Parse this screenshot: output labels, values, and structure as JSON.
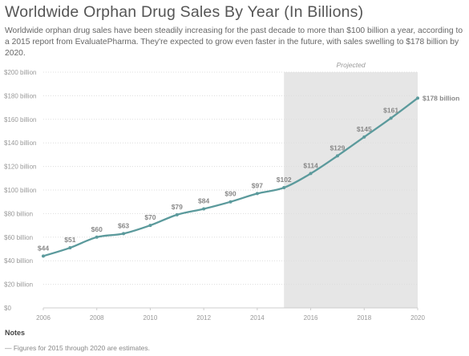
{
  "title": "Worldwide Orphan Drug Sales By Year (In Billions)",
  "subtitle": "Worldwide orphan drug sales have been steadily increasing for the past decade to more than $100 billion a year, according to a 2015 report from EvaluatePharma. They're expected to grow even faster in the future, with sales swelling to $178 billion by 2020.",
  "chart_data": {
    "type": "line",
    "x": [
      2006,
      2007,
      2008,
      2009,
      2010,
      2011,
      2012,
      2013,
      2014,
      2015,
      2016,
      2017,
      2018,
      2019,
      2020
    ],
    "series": [
      {
        "values": [
          44,
          51,
          60,
          63,
          70,
          79,
          84,
          90,
          97,
          102,
          114,
          129,
          145,
          161,
          178
        ],
        "labels": [
          "$44",
          "$51",
          "$60",
          "$63",
          "$70",
          "$79",
          "$84",
          "$90",
          "$97",
          "$102",
          "$114",
          "$129",
          "$145",
          "$161",
          "$178 billion"
        ]
      }
    ],
    "xlim": [
      2006,
      2020
    ],
    "ylim": [
      0,
      200
    ],
    "x_ticks": [
      "2006",
      "2008",
      "2010",
      "2012",
      "2014",
      "2016",
      "2018",
      "2020"
    ],
    "y_ticks": [
      "$0",
      "$20 billion",
      "$40 billion",
      "$60 billion",
      "$80 billion",
      "$100 billion",
      "$120 billion",
      "$140 billion",
      "$160 billion",
      "$180 billion",
      "$200 billion"
    ],
    "projected_range": [
      2015,
      2020
    ],
    "projected_label": "Projected",
    "grid": true,
    "colors": {
      "line": "#5b9a9c",
      "projected_band": "#e6e6e6",
      "grid": "#dddddd"
    }
  },
  "notes": {
    "heading": "Notes",
    "items": [
      "— Figures for 2015 through 2020 are estimates."
    ]
  }
}
